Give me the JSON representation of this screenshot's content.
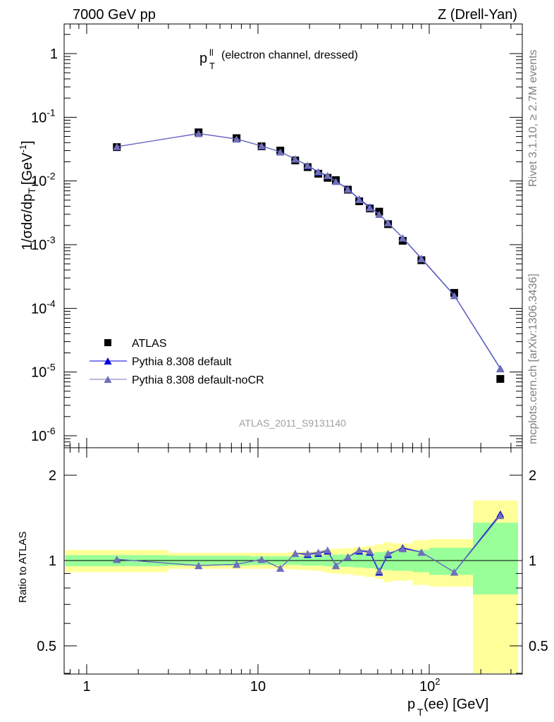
{
  "header": {
    "left": "7000 GeV pp",
    "right": "Z (Drell-Yan)"
  },
  "side_text": {
    "rivet": "Rivet 3.1.10, ≥ 2.7M events",
    "mcplots": "mcplots.cern.ch [arXiv:1306.3436]"
  },
  "reference": "ATLAS_2011_S9131140",
  "colors": {
    "atlas": "#000000",
    "default": "#0000dd",
    "noCR": "#7070b8",
    "band_inner": "#99ff99",
    "band_outer": "#ffff99"
  },
  "chart_data": [
    {
      "type": "line",
      "panel": "main",
      "title": "p_T^ll (electron channel, dressed)",
      "title_main": "p",
      "title_sup": "ll",
      "title_sub": "T",
      "title_rest": "(electron channel, dressed)",
      "ylabel": "1/σdσ/dp_T [GeV^-1]",
      "yscale": "log",
      "xscale": "log",
      "ylim": [
        5e-07,
        3
      ],
      "xlim": [
        0.75,
        330
      ],
      "y_ticks": [
        {
          "value": 1e-06,
          "label": "10",
          "exp": "-6"
        },
        {
          "value": 1e-05,
          "label": "10",
          "exp": "-5"
        },
        {
          "value": 0.0001,
          "label": "10",
          "exp": "-4"
        },
        {
          "value": 0.001,
          "label": "10",
          "exp": "-3"
        },
        {
          "value": 0.01,
          "label": "10",
          "exp": "-2"
        },
        {
          "value": 0.1,
          "label": "10",
          "exp": "-1"
        },
        {
          "value": 1,
          "label": "1",
          "exp": ""
        }
      ],
      "legend": [
        "ATLAS",
        "Pythia 8.308 default",
        "Pythia 8.308 default-noCR"
      ],
      "legend_position": "bottom-left",
      "series": [
        {
          "name": "ATLAS",
          "marker": "square",
          "x": [
            1.5,
            4.5,
            7.5,
            10.5,
            13.5,
            16.5,
            19.5,
            22.5,
            25.5,
            28.5,
            33.5,
            39,
            45,
            51,
            57.5,
            70,
            90,
            140,
            260
          ],
          "values": [
            0.034,
            0.058,
            0.047,
            0.035,
            0.03,
            0.021,
            0.0165,
            0.013,
            0.0112,
            0.0103,
            0.0073,
            0.0048,
            0.0037,
            0.0033,
            0.0021,
            0.00115,
            0.00057,
            0.000175,
            7.8e-06
          ]
        },
        {
          "name": "Pythia 8.308 default",
          "marker": "triangle",
          "x": [
            1.5,
            4.5,
            7.5,
            10.5,
            13.5,
            16.5,
            19.5,
            22.5,
            25.5,
            28.5,
            33.5,
            39,
            45,
            51,
            57.5,
            70,
            90,
            140,
            260
          ],
          "values": [
            0.0345,
            0.0556,
            0.0456,
            0.0355,
            0.0285,
            0.0222,
            0.0174,
            0.0138,
            0.0121,
            0.0099,
            0.0075,
            0.0052,
            0.0039,
            0.003,
            0.0022,
            0.00128,
            0.00061,
            0.00016,
            1.14e-05
          ]
        },
        {
          "name": "Pythia 8.308 default-noCR",
          "marker": "triangle",
          "x": [
            1.5,
            4.5,
            7.5,
            10.5,
            13.5,
            16.5,
            19.5,
            22.5,
            25.5,
            28.5,
            33.5,
            39,
            45,
            51,
            57.5,
            70,
            90,
            140,
            260
          ],
          "values": [
            0.0346,
            0.0557,
            0.0455,
            0.0356,
            0.0284,
            0.0221,
            0.0176,
            0.014,
            0.0122,
            0.0098,
            0.0074,
            0.0051,
            0.0038,
            0.003,
            0.0022,
            0.00127,
            0.0006,
            0.000158,
            1.12e-05
          ]
        }
      ]
    },
    {
      "type": "line",
      "panel": "ratio",
      "xlabel": "p_T(ee) [GeV]",
      "xlabel_main": "p",
      "xlabel_sub": "T",
      "xlabel_rest": "(ee) [GeV]",
      "ylabel": "Ratio to ATLAS",
      "yscale": "log",
      "xscale": "log",
      "ylim": [
        0.4,
        2.4
      ],
      "xlim": [
        0.75,
        330
      ],
      "y_ticks": [
        {
          "value": 0.5,
          "label": "0.5"
        },
        {
          "value": 1,
          "label": "1"
        },
        {
          "value": 2,
          "label": "2"
        }
      ],
      "x_ticks": [
        {
          "value": 1,
          "label": "1",
          "exp": ""
        },
        {
          "value": 10,
          "label": "10",
          "exp": ""
        },
        {
          "value": 100,
          "label": "10",
          "exp": "2"
        }
      ],
      "bands": [
        {
          "x0": 0.75,
          "x1": 3,
          "inner": [
            0.955,
            1.045
          ],
          "outer": [
            0.91,
            1.09
          ]
        },
        {
          "x0": 3,
          "x1": 6,
          "inner": [
            0.96,
            1.04
          ],
          "outer": [
            0.935,
            1.065
          ]
        },
        {
          "x0": 6,
          "x1": 9,
          "inner": [
            0.96,
            1.04
          ],
          "outer": [
            0.935,
            1.065
          ]
        },
        {
          "x0": 9,
          "x1": 12,
          "inner": [
            0.965,
            1.035
          ],
          "outer": [
            0.935,
            1.065
          ]
        },
        {
          "x0": 12,
          "x1": 15,
          "inner": [
            0.965,
            1.035
          ],
          "outer": [
            0.935,
            1.065
          ]
        },
        {
          "x0": 15,
          "x1": 18,
          "inner": [
            0.965,
            1.035
          ],
          "outer": [
            0.93,
            1.07
          ]
        },
        {
          "x0": 18,
          "x1": 21,
          "inner": [
            0.96,
            1.04
          ],
          "outer": [
            0.925,
            1.075
          ]
        },
        {
          "x0": 21,
          "x1": 24,
          "inner": [
            0.96,
            1.04
          ],
          "outer": [
            0.92,
            1.08
          ]
        },
        {
          "x0": 24,
          "x1": 27,
          "inner": [
            0.955,
            1.045
          ],
          "outer": [
            0.905,
            1.095
          ]
        },
        {
          "x0": 27,
          "x1": 30,
          "inner": [
            0.95,
            1.05
          ],
          "outer": [
            0.9,
            1.1
          ]
        },
        {
          "x0": 30,
          "x1": 36,
          "inner": [
            0.95,
            1.05
          ],
          "outer": [
            0.895,
            1.105
          ]
        },
        {
          "x0": 36,
          "x1": 42,
          "inner": [
            0.945,
            1.055
          ],
          "outer": [
            0.885,
            1.115
          ]
        },
        {
          "x0": 42,
          "x1": 48,
          "inner": [
            0.94,
            1.06
          ],
          "outer": [
            0.875,
            1.125
          ]
        },
        {
          "x0": 48,
          "x1": 54,
          "inner": [
            0.93,
            1.07
          ],
          "outer": [
            0.86,
            1.14
          ]
        },
        {
          "x0": 54,
          "x1": 60,
          "inner": [
            0.925,
            1.075
          ],
          "outer": [
            0.84,
            1.16
          ]
        },
        {
          "x0": 60,
          "x1": 80,
          "inner": [
            0.92,
            1.08
          ],
          "outer": [
            0.85,
            1.15
          ]
        },
        {
          "x0": 80,
          "x1": 100,
          "inner": [
            0.91,
            1.09
          ],
          "outer": [
            0.82,
            1.18
          ]
        },
        {
          "x0": 100,
          "x1": 180,
          "inner": [
            0.89,
            1.11
          ],
          "outer": [
            0.81,
            1.19
          ]
        },
        {
          "x0": 180,
          "x1": 330,
          "inner": [
            0.76,
            1.36
          ],
          "outer": [
            0.4,
            1.63
          ]
        }
      ],
      "series": [
        {
          "name": "Pythia 8.308 default",
          "x": [
            1.5,
            4.5,
            7.5,
            10.5,
            13.5,
            16.5,
            19.5,
            22.5,
            25.5,
            28.5,
            33.5,
            39,
            45,
            51,
            57.5,
            70,
            90,
            140,
            260
          ],
          "values": [
            1.01,
            0.96,
            0.97,
            1.01,
            0.94,
            1.06,
            1.05,
            1.06,
            1.08,
            0.96,
            1.03,
            1.08,
            1.07,
            0.91,
            1.05,
            1.11,
            1.07,
            0.91,
            1.46
          ]
        },
        {
          "name": "Pythia 8.308 default-noCR",
          "x": [
            1.5,
            4.5,
            7.5,
            10.5,
            13.5,
            16.5,
            19.5,
            22.5,
            25.5,
            28.5,
            33.5,
            39,
            45,
            51,
            57.5,
            70,
            90,
            140,
            260
          ],
          "values": [
            1.01,
            0.96,
            0.97,
            1.01,
            0.94,
            1.06,
            1.06,
            1.07,
            1.09,
            0.96,
            1.03,
            1.09,
            1.08,
            0.92,
            1.06,
            1.1,
            1.07,
            0.91,
            1.44
          ]
        }
      ]
    }
  ]
}
